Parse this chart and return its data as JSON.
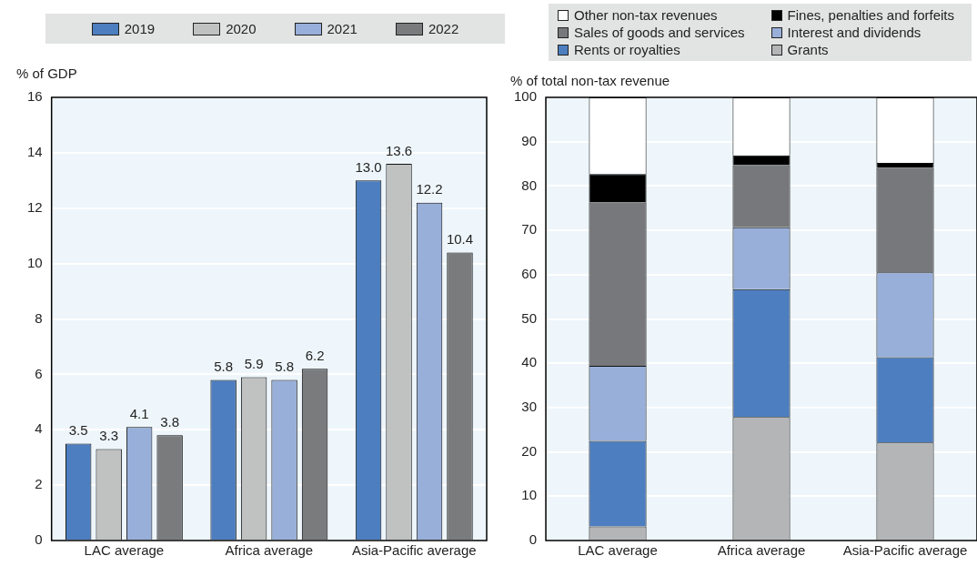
{
  "chart_data": [
    {
      "type": "bar",
      "ylabel": "% of GDP",
      "categories": [
        "LAC average",
        "Africa average",
        "Asia-Pacific average"
      ],
      "ylim": [
        0,
        16
      ],
      "yticks": [
        0,
        2,
        4,
        6,
        8,
        10,
        12,
        14,
        16
      ],
      "grid": "y",
      "legend": "top",
      "series": [
        {
          "name": "2019",
          "color": "#4d7ebf",
          "values": [
            3.5,
            5.8,
            13.0
          ],
          "value_labels": [
            "3.5",
            "5.8",
            "13.0"
          ]
        },
        {
          "name": "2020",
          "color": "#c0c2c1",
          "values": [
            3.3,
            5.9,
            13.6
          ],
          "value_labels": [
            "3.3",
            "5.9",
            "13.6"
          ]
        },
        {
          "name": "2021",
          "color": "#98afd9",
          "values": [
            4.1,
            5.8,
            12.2
          ],
          "value_labels": [
            "4.1",
            "5.8",
            "12.2"
          ]
        },
        {
          "name": "2022",
          "color": "#7a7b7d",
          "values": [
            3.8,
            6.2,
            10.4
          ],
          "value_labels": [
            "3.8",
            "6.2",
            "10.4"
          ]
        }
      ]
    },
    {
      "type": "bar",
      "stacked": true,
      "ylabel": "% of total non-tax revenue",
      "categories": [
        "LAC average",
        "Africa average",
        "Asia-Pacific average"
      ],
      "ylim": [
        0,
        100
      ],
      "yticks": [
        0,
        10,
        20,
        30,
        40,
        50,
        60,
        70,
        80,
        90,
        100
      ],
      "grid": "y",
      "legend": "top",
      "series": [
        {
          "name": "Grants",
          "color": "#b3b5b6",
          "values": [
            3.2,
            27.9,
            22.1
          ]
        },
        {
          "name": "Rents or royalties",
          "color": "#4d7ebf",
          "values": [
            19.3,
            28.8,
            19.3
          ]
        },
        {
          "name": "Interest and dividends",
          "color": "#98afd9",
          "values": [
            16.9,
            14.0,
            19.1
          ]
        },
        {
          "name": "Sales of goods and services",
          "color": "#77787b",
          "values": [
            36.9,
            14.0,
            23.6
          ]
        },
        {
          "name": "Fines, penalties and forfeits",
          "color": "#000000",
          "values": [
            6.4,
            2.2,
            1.1
          ]
        },
        {
          "name": "Other non-tax revenues",
          "color": "#ffffff",
          "values": [
            17.3,
            13.1,
            14.8
          ]
        }
      ]
    }
  ]
}
